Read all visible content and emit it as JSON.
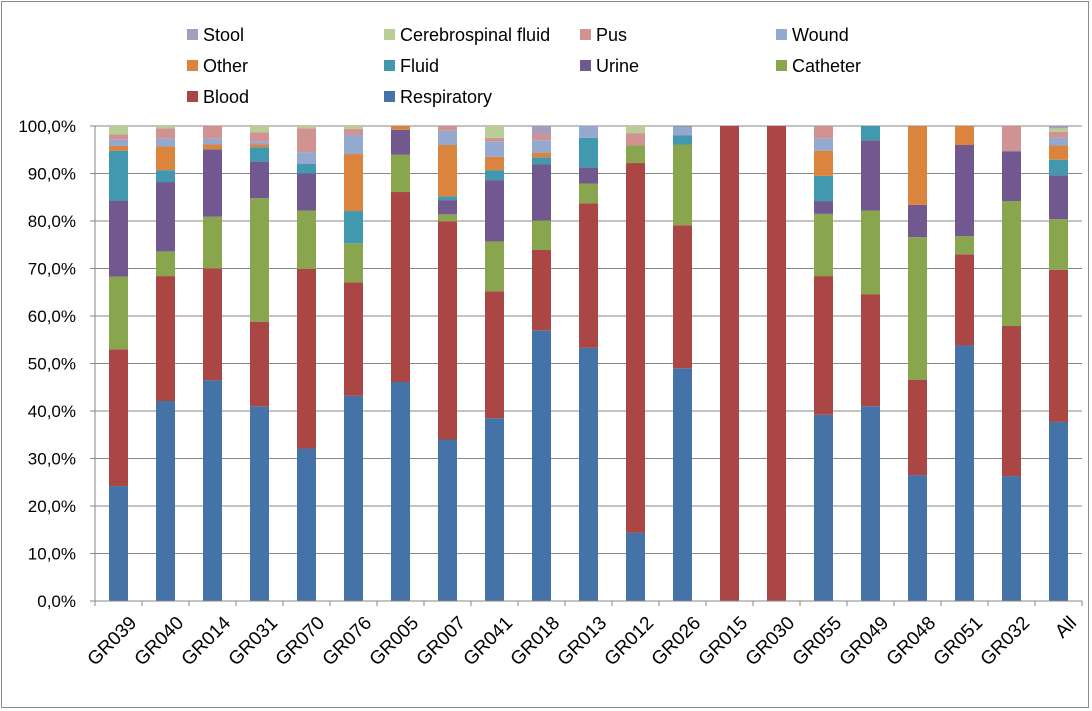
{
  "chart_data": {
    "type": "bar",
    "stacked": true,
    "percent": true,
    "categories": [
      "GR039",
      "GR040",
      "GR014",
      "GR031",
      "GR070",
      "GR076",
      "GR005",
      "GR007",
      "GR041",
      "GR018",
      "GR013",
      "GR012",
      "GR026",
      "GR015",
      "GR030",
      "GR055",
      "GR049",
      "GR048",
      "GR051",
      "GR032",
      "All"
    ],
    "ylim": [
      0,
      100
    ],
    "yticks": [
      "0,0%",
      "10,0%",
      "20,0%",
      "30,0%",
      "40,0%",
      "50,0%",
      "60,0%",
      "70,0%",
      "80,0%",
      "90,0%",
      "100,0%"
    ],
    "grid": true,
    "legend_position": "top",
    "series": [
      {
        "name": "Respiratory",
        "color": "#4572A7",
        "values": [
          24.2,
          42.1,
          46.5,
          41.0,
          32.1,
          43.2,
          46.1,
          34.0,
          38.5,
          57.0,
          53.3,
          14.4,
          49.0,
          0,
          0,
          39.2,
          41.0,
          26.5,
          53.8,
          26.3,
          37.7
        ]
      },
      {
        "name": "Blood",
        "color": "#AA4643",
        "values": [
          28.8,
          26.3,
          23.5,
          17.8,
          37.8,
          23.9,
          40.0,
          45.9,
          26.7,
          16.9,
          30.4,
          77.8,
          30.1,
          100,
          100,
          29.2,
          23.6,
          20.1,
          19.2,
          31.6,
          32.0
        ]
      },
      {
        "name": "Catheter",
        "color": "#89A54E",
        "values": [
          15.3,
          5.2,
          10.9,
          26.0,
          12.3,
          8.2,
          7.9,
          1.5,
          10.5,
          6.2,
          4.2,
          3.7,
          17.0,
          0,
          0,
          13.1,
          17.6,
          30.0,
          3.8,
          26.3,
          10.7
        ]
      },
      {
        "name": "Urine",
        "color": "#71588F",
        "values": [
          16.0,
          14.6,
          14.2,
          7.7,
          7.8,
          0,
          5.2,
          3.0,
          12.9,
          11.8,
          3.4,
          0,
          0,
          0,
          0,
          2.7,
          14.8,
          6.8,
          19.2,
          10.5,
          9.2
        ]
      },
      {
        "name": "Fluid",
        "color": "#4198AF",
        "values": [
          10.5,
          2.5,
          0,
          3.0,
          2.0,
          6.8,
          0,
          0.8,
          2.1,
          1.5,
          6.2,
          0,
          1.9,
          0,
          0,
          5.3,
          3.0,
          0,
          0,
          0,
          3.3
        ]
      },
      {
        "name": "Other",
        "color": "#DB843D",
        "values": [
          1.0,
          5.0,
          1.0,
          0.6,
          0,
          12.0,
          0.8,
          10.8,
          2.8,
          1.0,
          0,
          0,
          0,
          0,
          0,
          5.3,
          0,
          16.6,
          4.0,
          0,
          3.0
        ]
      },
      {
        "name": "Wound",
        "color": "#93A9CF",
        "values": [
          1.3,
          1.6,
          1.2,
          0.6,
          2.5,
          4.0,
          0,
          3.0,
          3.2,
          2.6,
          2.5,
          0,
          1.9,
          0,
          0,
          2.6,
          0,
          0,
          0,
          0,
          1.6
        ]
      },
      {
        "name": "Pus",
        "color": "#D19392",
        "values": [
          1.1,
          2.2,
          2.7,
          2.0,
          5.0,
          1.3,
          0,
          1.0,
          0.8,
          1.2,
          0,
          2.6,
          0,
          0,
          0,
          2.6,
          0,
          0,
          0,
          5.3,
          1.3
        ]
      },
      {
        "name": "Cerebrospinal fluid",
        "color": "#B9CD96",
        "values": [
          1.8,
          0.5,
          0,
          1.3,
          0.5,
          0.6,
          0,
          0,
          2.5,
          0,
          0,
          1.5,
          0,
          0,
          0,
          0,
          0,
          0,
          0,
          0,
          0.7
        ]
      },
      {
        "name": "Stool",
        "color": "#A99BBD",
        "values": [
          0,
          0,
          0,
          0,
          0,
          0,
          0,
          0,
          0,
          1.8,
          0,
          0,
          0,
          0,
          0,
          0,
          0,
          0,
          0,
          0,
          0.5
        ]
      }
    ],
    "legend_order": [
      "Stool",
      "Cerebrospinal fluid",
      "Pus",
      "Wound",
      "Other",
      "Fluid",
      "Urine",
      "Catheter",
      "Blood",
      "Respiratory"
    ]
  }
}
